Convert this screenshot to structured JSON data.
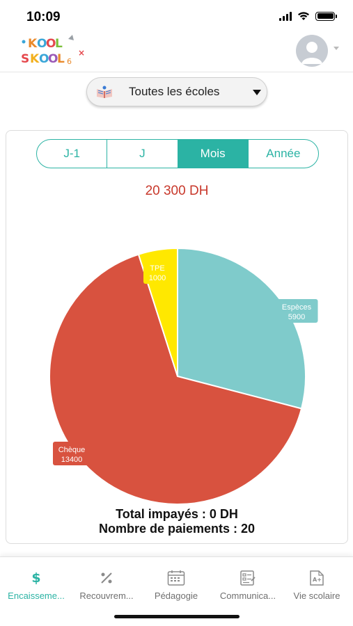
{
  "status_bar": {
    "time": "10:09"
  },
  "header": {
    "logo_text": "KOOL SKOOL",
    "avatar_icon": "user-avatar-icon"
  },
  "school_select": {
    "selected": "Toutes les écoles"
  },
  "period_tabs": [
    {
      "label": "J-1",
      "active": false
    },
    {
      "label": "J",
      "active": false
    },
    {
      "label": "Mois",
      "active": true
    },
    {
      "label": "Année",
      "active": false
    }
  ],
  "total_amount": "20 300 DH",
  "chart_data": {
    "type": "pie",
    "slices": [
      {
        "name": "Espèces",
        "value": 5900,
        "label": "5900",
        "color": "#7fcbcb"
      },
      {
        "name": "Chèque",
        "value": 13400,
        "label": "13400",
        "color": "#d8523f"
      },
      {
        "name": "TPE",
        "value": 1000,
        "label": "1000",
        "color": "#ffe800"
      }
    ]
  },
  "summary": {
    "unpaid": "Total impayés : 0 DH",
    "payments": "Nombre de paiements : 20"
  },
  "tab_bar": [
    {
      "label": "Encaisseme...",
      "icon": "dollar-icon",
      "active": true
    },
    {
      "label": "Recouvrem...",
      "icon": "percent-icon",
      "active": false
    },
    {
      "label": "Pédagogie",
      "icon": "calendar-icon",
      "active": false
    },
    {
      "label": "Communica...",
      "icon": "form-icon",
      "active": false
    },
    {
      "label": "Vie scolaire",
      "icon": "document-grade-icon",
      "active": false
    }
  ],
  "colors": {
    "accent": "#2bb3a4",
    "amount": "#c8382b"
  }
}
